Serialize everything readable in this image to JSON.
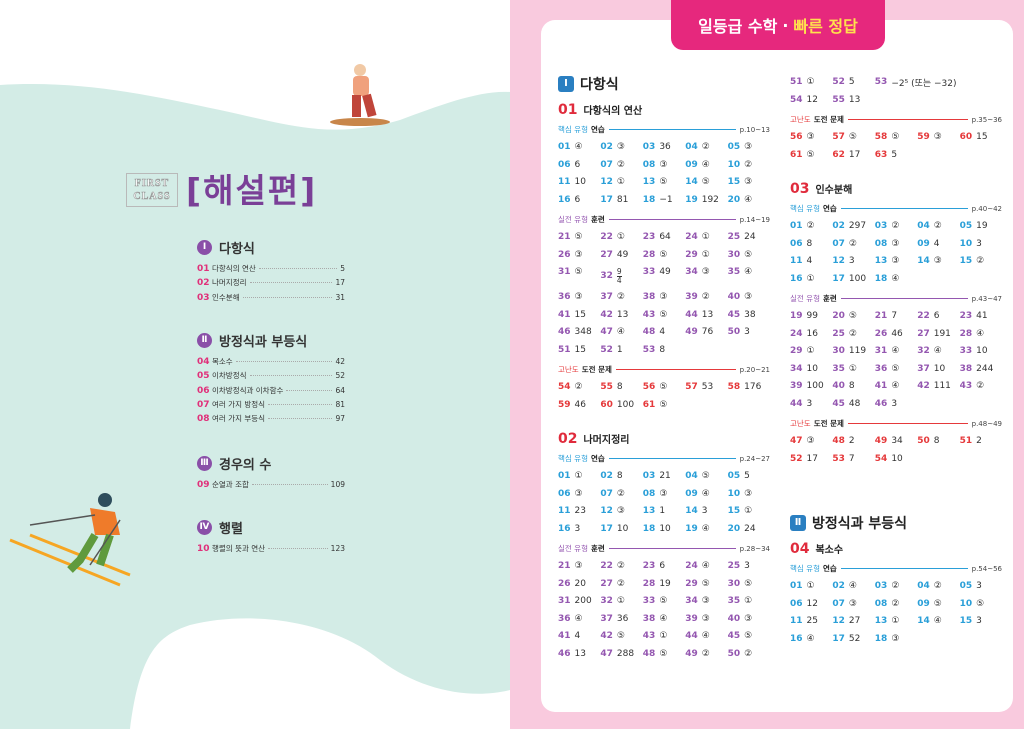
{
  "left": {
    "brand": [
      "FIRST",
      "CLASS"
    ],
    "title": "[해설편]",
    "chapters": [
      {
        "num": "Ⅰ",
        "title": "다항식",
        "items": [
          [
            "01",
            "다항식의 연산",
            "5"
          ],
          [
            "02",
            "나머지정리",
            "17"
          ],
          [
            "03",
            "인수분해",
            "31"
          ]
        ]
      },
      {
        "num": "Ⅱ",
        "title": "방정식과 부등식",
        "items": [
          [
            "04",
            "복소수",
            "42"
          ],
          [
            "05",
            "이차방정식",
            "52"
          ],
          [
            "06",
            "이차방정식과 이차함수",
            "64"
          ],
          [
            "07",
            "여러 가지 방정식",
            "81"
          ],
          [
            "08",
            "여러 가지 부등식",
            "97"
          ]
        ]
      },
      {
        "num": "Ⅲ",
        "title": "경우의 수",
        "items": [
          [
            "09",
            "순열과 조합",
            "109"
          ]
        ]
      },
      {
        "num": "Ⅳ",
        "title": "행렬",
        "items": [
          [
            "10",
            "행렬의 뜻과 연산",
            "123"
          ]
        ]
      }
    ]
  },
  "right": {
    "header": [
      "일등급 수학",
      "·",
      "빠른 정답"
    ],
    "columns": [
      [
        {
          "chapter": "Ⅰ",
          "title": "다항식"
        },
        {
          "section": "01",
          "title": "다항식의 연산"
        },
        {
          "tag": "핵심 유형",
          "name": "연습",
          "pages": "p.10~13",
          "color": "#2a9fd8",
          "answers": [
            [
              "01",
              "④"
            ],
            [
              "02",
              "③"
            ],
            [
              "03",
              "36"
            ],
            [
              "04",
              "②"
            ],
            [
              "05",
              "③"
            ],
            [
              "06",
              "6"
            ],
            [
              "07",
              "②"
            ],
            [
              "08",
              "③"
            ],
            [
              "09",
              "④"
            ],
            [
              "10",
              "②"
            ],
            [
              "11",
              "10"
            ],
            [
              "12",
              "①"
            ],
            [
              "13",
              "⑤"
            ],
            [
              "14",
              "⑤"
            ],
            [
              "15",
              "③"
            ],
            [
              "16",
              "6"
            ],
            [
              "17",
              "81"
            ],
            [
              "18",
              "−1"
            ],
            [
              "19",
              "192"
            ],
            [
              "20",
              "④"
            ]
          ]
        },
        {
          "tag": "실전 유형",
          "name": "훈련",
          "pages": "p.14~19",
          "color": "#9457b0",
          "answers": [
            [
              "21",
              "⑤"
            ],
            [
              "22",
              "①"
            ],
            [
              "23",
              "64"
            ],
            [
              "24",
              "①"
            ],
            [
              "25",
              "24"
            ],
            [
              "26",
              "③"
            ],
            [
              "27",
              "49"
            ],
            [
              "28",
              "⑤"
            ],
            [
              "29",
              "①"
            ],
            [
              "30",
              "⑤"
            ],
            [
              "31",
              "⑤"
            ],
            [
              "32",
              {
                "num": "9",
                "den": "4"
              }
            ],
            [
              "33",
              "49"
            ],
            [
              "34",
              "③"
            ],
            [
              "35",
              "④"
            ],
            [
              "36",
              "③"
            ],
            [
              "37",
              "②"
            ],
            [
              "38",
              "③"
            ],
            [
              "39",
              "②"
            ],
            [
              "40",
              "③"
            ],
            [
              "41",
              "15"
            ],
            [
              "42",
              "13"
            ],
            [
              "43",
              "⑤"
            ],
            [
              "44",
              "13"
            ],
            [
              "45",
              "38"
            ],
            [
              "46",
              "348"
            ],
            [
              "47",
              "④"
            ],
            [
              "48",
              "4"
            ],
            [
              "49",
              "76"
            ],
            [
              "50",
              "3"
            ],
            [
              "51",
              "15"
            ],
            [
              "52",
              "1"
            ],
            [
              "53",
              "8"
            ]
          ]
        },
        {
          "tag": "고난도",
          "name": "도전 문제",
          "pages": "p.20~21",
          "color": "#e5393b",
          "answers": [
            [
              "54",
              "②"
            ],
            [
              "55",
              "8"
            ],
            [
              "56",
              "⑤"
            ],
            [
              "57",
              "53"
            ],
            [
              "58",
              "176"
            ],
            [
              "59",
              "46"
            ],
            [
              "60",
              "100"
            ],
            [
              "61",
              "⑤"
            ]
          ]
        },
        {
          "section": "02",
          "title": "나머지정리"
        },
        {
          "tag": "핵심 유형",
          "name": "연습",
          "pages": "p.24~27",
          "color": "#2a9fd8",
          "answers": [
            [
              "01",
              "①"
            ],
            [
              "02",
              "8"
            ],
            [
              "03",
              "21"
            ],
            [
              "04",
              "⑤"
            ],
            [
              "05",
              "5"
            ],
            [
              "06",
              "③"
            ],
            [
              "07",
              "②"
            ],
            [
              "08",
              "③"
            ],
            [
              "09",
              "④"
            ],
            [
              "10",
              "③"
            ],
            [
              "11",
              "23"
            ],
            [
              "12",
              "③"
            ],
            [
              "13",
              "1"
            ],
            [
              "14",
              "3"
            ],
            [
              "15",
              "①"
            ],
            [
              "16",
              "3"
            ],
            [
              "17",
              "10"
            ],
            [
              "18",
              "10"
            ],
            [
              "19",
              "④"
            ],
            [
              "20",
              "24"
            ]
          ]
        },
        {
          "tag": "실전 유형",
          "name": "훈련",
          "pages": "p.28~34",
          "color": "#9457b0",
          "answers": [
            [
              "21",
              "③"
            ],
            [
              "22",
              "②"
            ],
            [
              "23",
              "6"
            ],
            [
              "24",
              "④"
            ],
            [
              "25",
              "3"
            ],
            [
              "26",
              "20"
            ],
            [
              "27",
              "②"
            ],
            [
              "28",
              "19"
            ],
            [
              "29",
              "⑤"
            ],
            [
              "30",
              "⑤"
            ],
            [
              "31",
              "200"
            ],
            [
              "32",
              "①"
            ],
            [
              "33",
              "⑤"
            ],
            [
              "34",
              "③"
            ],
            [
              "35",
              "①"
            ],
            [
              "36",
              "④"
            ],
            [
              "37",
              "36"
            ],
            [
              "38",
              "④"
            ],
            [
              "39",
              "③"
            ],
            [
              "40",
              "③"
            ],
            [
              "41",
              "4"
            ],
            [
              "42",
              "⑤"
            ],
            [
              "43",
              "①"
            ],
            [
              "44",
              "④"
            ],
            [
              "45",
              "⑤"
            ],
            [
              "46",
              "13"
            ],
            [
              "47",
              "288"
            ],
            [
              "48",
              "⑤"
            ],
            [
              "49",
              "②"
            ],
            [
              "50",
              "②"
            ]
          ]
        }
      ],
      [
        {
          "color": "#9457b0",
          "answers": [
            [
              "51",
              "①"
            ],
            [
              "52",
              "5"
            ],
            [
              "53",
              "−2⁵ (또는 −32)"
            ],
            [
              "54",
              "12"
            ],
            [
              "55",
              "13"
            ]
          ]
        },
        {
          "tag": "고난도",
          "name": "도전 문제",
          "pages": "p.35~36",
          "color": "#e5393b",
          "answers": [
            [
              "56",
              "③"
            ],
            [
              "57",
              "⑤"
            ],
            [
              "58",
              "⑤"
            ],
            [
              "59",
              "③"
            ],
            [
              "60",
              "15"
            ],
            [
              "61",
              "⑤"
            ],
            [
              "62",
              "17"
            ],
            [
              "63",
              "5"
            ]
          ]
        },
        {
          "section": "03",
          "title": "인수분해"
        },
        {
          "tag": "핵심 유형",
          "name": "연습",
          "pages": "p.40~42",
          "color": "#2a9fd8",
          "answers": [
            [
              "01",
              "②"
            ],
            [
              "02",
              "297"
            ],
            [
              "03",
              "②"
            ],
            [
              "04",
              "②"
            ],
            [
              "05",
              "19"
            ],
            [
              "06",
              "8"
            ],
            [
              "07",
              "②"
            ],
            [
              "08",
              "③"
            ],
            [
              "09",
              "4"
            ],
            [
              "10",
              "3"
            ],
            [
              "11",
              "4"
            ],
            [
              "12",
              "3"
            ],
            [
              "13",
              "③"
            ],
            [
              "14",
              "③"
            ],
            [
              "15",
              "②"
            ],
            [
              "16",
              "①"
            ],
            [
              "17",
              "100"
            ],
            [
              "18",
              "④"
            ]
          ]
        },
        {
          "tag": "실전 유형",
          "name": "훈련",
          "pages": "p.43~47",
          "color": "#9457b0",
          "answers": [
            [
              "19",
              "99"
            ],
            [
              "20",
              "⑤"
            ],
            [
              "21",
              "7"
            ],
            [
              "22",
              "6"
            ],
            [
              "23",
              "41"
            ],
            [
              "24",
              "16"
            ],
            [
              "25",
              "②"
            ],
            [
              "26",
              "46"
            ],
            [
              "27",
              "191"
            ],
            [
              "28",
              "④"
            ],
            [
              "29",
              "①"
            ],
            [
              "30",
              "119"
            ],
            [
              "31",
              "④"
            ],
            [
              "32",
              "④"
            ],
            [
              "33",
              "10"
            ],
            [
              "34",
              "10"
            ],
            [
              "35",
              "①"
            ],
            [
              "36",
              "⑤"
            ],
            [
              "37",
              "10"
            ],
            [
              "38",
              "244"
            ],
            [
              "39",
              "100"
            ],
            [
              "40",
              "8"
            ],
            [
              "41",
              "④"
            ],
            [
              "42",
              "111"
            ],
            [
              "43",
              "②"
            ],
            [
              "44",
              "3"
            ],
            [
              "45",
              "48"
            ],
            [
              "46",
              "3"
            ]
          ]
        },
        {
          "tag": "고난도",
          "name": "도전 문제",
          "pages": "p.48~49",
          "color": "#e5393b",
          "answers": [
            [
              "47",
              "③"
            ],
            [
              "48",
              "2"
            ],
            [
              "49",
              "34"
            ],
            [
              "50",
              "8"
            ],
            [
              "51",
              "2"
            ],
            [
              "52",
              "17"
            ],
            [
              "53",
              "7"
            ],
            [
              "54",
              "10"
            ]
          ]
        },
        {
          "chapter": "Ⅱ",
          "title": "방정식과 부등식"
        },
        {
          "section": "04",
          "title": "복소수"
        },
        {
          "tag": "핵심 유형",
          "name": "연습",
          "pages": "p.54~56",
          "color": "#2a9fd8",
          "answers": [
            [
              "01",
              "①"
            ],
            [
              "02",
              "④"
            ],
            [
              "03",
              "②"
            ],
            [
              "04",
              "②"
            ],
            [
              "05",
              "3"
            ],
            [
              "06",
              "12"
            ],
            [
              "07",
              "③"
            ],
            [
              "08",
              "②"
            ],
            [
              "09",
              "⑤"
            ],
            [
              "10",
              "⑤"
            ],
            [
              "11",
              "25"
            ],
            [
              "12",
              "27"
            ],
            [
              "13",
              "①"
            ],
            [
              "14",
              "④"
            ],
            [
              "15",
              "3"
            ],
            [
              "16",
              "④"
            ],
            [
              "17",
              "52"
            ],
            [
              "18",
              "③"
            ]
          ]
        }
      ]
    ]
  }
}
